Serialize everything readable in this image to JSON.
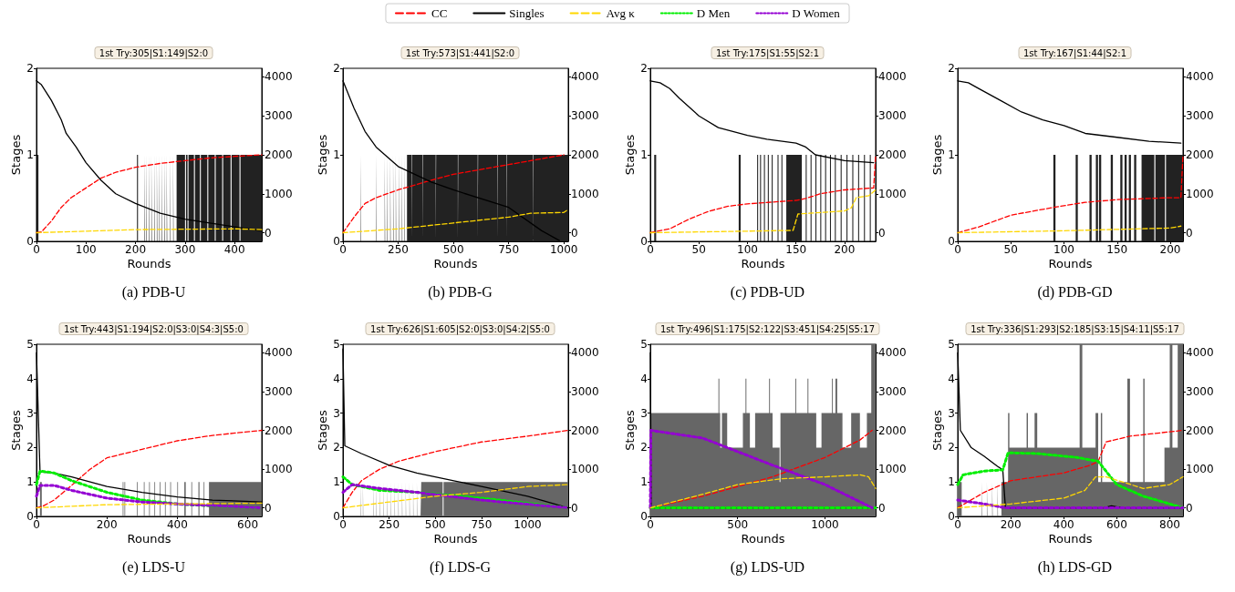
{
  "chart_data": [
    {
      "type": "line",
      "title": "1st Try:305|S1:149|S2:0",
      "annotations": [
        "(a) PDB-U"
      ],
      "xlabel": "Rounds",
      "ylabel": "Stages",
      "legend": "top",
      "xlim": [
        0,
        455
      ],
      "xticks": [
        0,
        100,
        200,
        300,
        400
      ],
      "ylim": [
        0,
        2
      ],
      "yticks": [
        0,
        1,
        2
      ],
      "y2lim": [
        -222,
        4222
      ],
      "y2ticks": [
        0,
        1000,
        2000,
        3000,
        4000
      ],
      "series": [
        {
          "type": "area",
          "axis": "y",
          "color": "#222222",
          "x": [
            0,
            2,
            4,
            203,
            205,
            218,
            219,
            222,
            223,
            227,
            228,
            232,
            233,
            238,
            239,
            243,
            244,
            248,
            249,
            253,
            254,
            258,
            259,
            263,
            264,
            270,
            271,
            276,
            277,
            283,
            300,
            302,
            305,
            307,
            318,
            320,
            330,
            332,
            345,
            347,
            360,
            362,
            375,
            377,
            392,
            394,
            410,
            412,
            455
          ],
          "values": [
            0,
            1,
            0,
            1,
            0,
            1,
            0,
            1,
            0,
            1,
            0,
            1,
            0,
            1,
            0,
            1,
            0,
            1,
            0,
            1,
            0,
            1,
            0,
            1,
            0,
            1,
            0,
            1,
            0,
            1,
            0,
            1,
            0,
            1,
            0,
            1,
            0,
            1,
            0,
            1,
            0,
            1,
            0,
            1,
            0,
            1,
            0,
            1,
            1
          ]
        },
        {
          "name": "CC",
          "color": "#ff0000",
          "line_style": "dashed",
          "axis": "y2",
          "x": [
            0,
            10,
            30,
            50,
            70,
            100,
            130,
            160,
            200,
            250,
            300,
            350,
            400,
            455
          ],
          "values": [
            0,
            20,
            300,
            650,
            900,
            1150,
            1400,
            1550,
            1680,
            1780,
            1850,
            1920,
            1960,
            2000
          ]
        },
        {
          "name": "Singles",
          "color": "#000000",
          "line_style": "solid",
          "axis": "y2",
          "x": [
            0,
            10,
            30,
            50,
            60,
            80,
            100,
            130,
            160,
            200,
            250,
            300,
            350,
            400,
            455
          ],
          "values": [
            3900,
            3800,
            3400,
            2900,
            2550,
            2200,
            1800,
            1350,
            1000,
            750,
            500,
            350,
            250,
            150,
            50
          ]
        },
        {
          "name": "Avg κ",
          "color": "#ffd700",
          "line_style": "dashed",
          "axis": "y2",
          "x": [
            0,
            200,
            400,
            455
          ],
          "values": [
            0,
            80,
            100,
            80
          ]
        }
      ]
    },
    {
      "type": "line",
      "title": "1st Try:573|S1:441|S2:0",
      "annotations": [
        "(b) PDB-G"
      ],
      "legend": "top",
      "xlabel": "Rounds",
      "ylabel": "Stages",
      "xlim": [
        0,
        1020
      ],
      "xticks": [
        0,
        250,
        500,
        750,
        1000
      ],
      "ylim": [
        0,
        2
      ],
      "yticks": [
        0,
        1,
        2
      ],
      "y2lim": [
        -222,
        4222
      ],
      "y2ticks": [
        0,
        1000,
        2000,
        3000,
        4000
      ],
      "series": [
        {
          "type": "area",
          "axis": "y",
          "color": "#222222",
          "x": [
            0,
            79,
            81,
            151,
            153,
            189,
            191,
            199,
            201,
            214,
            216,
            227,
            229,
            239,
            241,
            254,
            256,
            267,
            269,
            279,
            281,
            290,
            310,
            312,
            360,
            362,
            420,
            422,
            520,
            522,
            610,
            612,
            700,
            702,
            740,
            742,
            860,
            862,
            1020
          ],
          "values": [
            0,
            1,
            0,
            1,
            0,
            1,
            0,
            1,
            0,
            1,
            0,
            1,
            0,
            1,
            0,
            1,
            0,
            1,
            0,
            1,
            0,
            1,
            0,
            1,
            0,
            1,
            0,
            1,
            0,
            1,
            0,
            1,
            0,
            1,
            0,
            1,
            0,
            1,
            1
          ]
        },
        {
          "name": "CC",
          "color": "#ff0000",
          "line_style": "dashed",
          "axis": "y2",
          "x": [
            0,
            50,
            100,
            150,
            250,
            400,
            500,
            750,
            1000
          ],
          "values": [
            0,
            400,
            750,
            900,
            1100,
            1350,
            1500,
            1750,
            2000
          ]
        },
        {
          "name": "Singles",
          "color": "#000000",
          "line_style": "solid",
          "axis": "y2",
          "x": [
            0,
            50,
            100,
            150,
            250,
            400,
            500,
            750,
            900,
            980
          ],
          "values": [
            3900,
            3200,
            2600,
            2200,
            1700,
            1300,
            1100,
            650,
            50,
            -200
          ]
        },
        {
          "name": "Avg κ",
          "color": "#ffd700",
          "line_style": "dashed",
          "axis": "y2",
          "x": [
            0,
            250,
            500,
            750,
            850,
            1000,
            1020
          ],
          "values": [
            0,
            100,
            250,
            400,
            500,
            520,
            600
          ]
        }
      ]
    },
    {
      "type": "line",
      "title": "1st Try:175|S1:55|S2:1",
      "annotations": [
        "(c) PDB-UD"
      ],
      "legend": "top",
      "xlabel": "Rounds",
      "ylabel": "Stages",
      "xlim": [
        0,
        232
      ],
      "xticks": [
        0,
        50,
        100,
        150,
        200
      ],
      "ylim": [
        0,
        2
      ],
      "yticks": [
        0,
        1,
        2
      ],
      "y2lim": [
        -222,
        4222
      ],
      "y2ticks": [
        0,
        1000,
        2000,
        3000,
        4000
      ],
      "series": [
        {
          "type": "area",
          "axis": "y",
          "color": "#222222",
          "x": [
            0,
            4,
            6,
            91,
            93,
            110,
            111,
            113,
            114,
            117,
            118,
            121,
            122,
            125,
            126,
            131,
            132,
            135,
            136,
            140,
            156,
            160,
            161,
            165,
            166,
            170,
            171,
            175,
            176,
            180,
            181,
            185,
            186,
            190,
            191,
            196,
            197,
            202,
            203,
            208,
            209,
            214,
            215,
            220,
            221,
            226,
            227,
            232
          ],
          "values": [
            0,
            1,
            0,
            1,
            0,
            1,
            0,
            1,
            0,
            1,
            0,
            1,
            0,
            1,
            0,
            1,
            0,
            1,
            0,
            1,
            0,
            1,
            0,
            1,
            0,
            1,
            0,
            1,
            0,
            1,
            0,
            1,
            0,
            1,
            0,
            1,
            0,
            1,
            0,
            1,
            0,
            1,
            0,
            1,
            0,
            1,
            0,
            1
          ]
        },
        {
          "name": "CC",
          "color": "#ff0000",
          "line_style": "dashed",
          "axis": "y2",
          "x": [
            0,
            20,
            40,
            60,
            80,
            100,
            150,
            160,
            175,
            200,
            230,
            232
          ],
          "values": [
            0,
            100,
            350,
            550,
            680,
            740,
            830,
            880,
            1000,
            1100,
            1150,
            2000
          ]
        },
        {
          "name": "Singles",
          "color": "#000000",
          "line_style": "solid",
          "axis": "y2",
          "x": [
            0,
            10,
            20,
            30,
            50,
            70,
            100,
            120,
            150,
            160,
            170,
            200,
            230
          ],
          "values": [
            3900,
            3850,
            3700,
            3450,
            3000,
            2700,
            2500,
            2400,
            2300,
            2200,
            2000,
            1850,
            1800
          ]
        },
        {
          "name": "Avg κ",
          "color": "#ffd700",
          "line_style": "dashed",
          "axis": "y2",
          "x": [
            0,
            100,
            147,
            152,
            200,
            207,
            212,
            225,
            232
          ],
          "values": [
            0,
            40,
            60,
            480,
            560,
            640,
            900,
            950,
            1100
          ]
        }
      ]
    },
    {
      "type": "line",
      "title": "1st Try:167|S1:44|S2:1",
      "annotations": [
        "(d) PDB-GD"
      ],
      "legend": "top",
      "xlabel": "Rounds",
      "ylabel": "Stages",
      "xlim": [
        0,
        212
      ],
      "xticks": [
        0,
        50,
        100,
        150,
        200
      ],
      "ylim": [
        0,
        2
      ],
      "yticks": [
        0,
        1,
        2
      ],
      "y2lim": [
        -222,
        4222
      ],
      "y2ticks": [
        0,
        1000,
        2000,
        3000,
        4000
      ],
      "series": [
        {
          "type": "area",
          "axis": "y",
          "color": "#222222",
          "x": [
            0,
            90,
            92,
            111,
            113,
            124,
            126,
            130,
            132,
            133,
            135,
            144,
            146,
            153,
            155,
            157,
            159,
            161,
            163,
            166,
            168,
            173,
            185,
            186,
            195,
            196,
            212
          ],
          "values": [
            0,
            1,
            0,
            1,
            0,
            1,
            0,
            1,
            0,
            1,
            0,
            1,
            0,
            1,
            0,
            1,
            0,
            1,
            0,
            1,
            0,
            1,
            0,
            1,
            0,
            1,
            1
          ]
        },
        {
          "name": "CC",
          "color": "#ff0000",
          "line_style": "dashed",
          "axis": "y2",
          "x": [
            0,
            20,
            50,
            90,
            120,
            150,
            200,
            210,
            212
          ],
          "values": [
            0,
            150,
            450,
            650,
            780,
            850,
            900,
            900,
            2000
          ]
        },
        {
          "name": "Singles",
          "color": "#000000",
          "line_style": "solid",
          "axis": "y2",
          "x": [
            0,
            10,
            20,
            40,
            60,
            80,
            100,
            120,
            150,
            180,
            210
          ],
          "values": [
            3900,
            3850,
            3700,
            3400,
            3100,
            2900,
            2750,
            2550,
            2450,
            2350,
            2300
          ]
        },
        {
          "name": "Avg κ",
          "color": "#ffd700",
          "line_style": "dashed",
          "axis": "y2",
          "x": [
            0,
            100,
            200,
            210
          ],
          "values": [
            0,
            50,
            120,
            170
          ]
        }
      ]
    },
    {
      "type": "line",
      "title": "1st Try:443|S1:194|S2:0|S3:0|S4:3|S5:0",
      "annotations": [
        "(e) LDS-U"
      ],
      "legend": "top",
      "xlabel": "Rounds",
      "ylabel": "Stages",
      "xlim": [
        0,
        640
      ],
      "xticks": [
        0,
        200,
        400,
        600
      ],
      "ylim": [
        0,
        5
      ],
      "yticks": [
        0,
        1,
        2,
        3,
        4,
        5
      ],
      "y2lim": [
        -222,
        4222
      ],
      "y2ticks": [
        0,
        1000,
        2000,
        3000,
        4000
      ],
      "series": [
        {
          "type": "area",
          "axis": "y",
          "color": "#666666",
          "x": [
            0,
            10,
            15,
            245,
            247,
            250,
            252,
            285,
            287,
            305,
            307,
            320,
            322,
            335,
            337,
            350,
            352,
            365,
            367,
            380,
            382,
            400,
            402,
            420,
            424,
            440,
            442,
            460,
            463,
            475,
            477,
            490,
            640
          ],
          "values": [
            0,
            1,
            0,
            1,
            0,
            1,
            0,
            1,
            0,
            1,
            0,
            1,
            0,
            1,
            0,
            1,
            0,
            1,
            0,
            1,
            0,
            1,
            0,
            1,
            0,
            1,
            0,
            1,
            0,
            1,
            0,
            1,
            1
          ]
        },
        {
          "name": "CC",
          "color": "#ff0000",
          "line_style": "dashed",
          "axis": "y2",
          "x": [
            0,
            20,
            50,
            100,
            150,
            200,
            250,
            300,
            400,
            500,
            640
          ],
          "values": [
            0,
            50,
            200,
            580,
            980,
            1290,
            1400,
            1510,
            1730,
            1870,
            2000
          ]
        },
        {
          "name": "Singles",
          "color": "#000000",
          "line_style": "solid",
          "axis": "y2",
          "x": [
            0,
            10,
            50,
            100,
            200,
            300,
            400,
            500,
            640
          ],
          "values": [
            4000,
            930,
            900,
            800,
            550,
            400,
            280,
            200,
            150
          ]
        },
        {
          "name": "D Men",
          "color": "#00ee00",
          "line_style": "dotted",
          "axis": "y2",
          "x": [
            0,
            10,
            50,
            100,
            200,
            300,
            400,
            500,
            640
          ],
          "values": [
            600,
            950,
            900,
            700,
            400,
            200,
            100,
            50,
            0
          ]
        },
        {
          "name": "D Women",
          "color": "#9400d3",
          "line_style": "dotted",
          "axis": "y2",
          "x": [
            0,
            10,
            50,
            100,
            200,
            300,
            400,
            640
          ],
          "values": [
            300,
            580,
            580,
            450,
            250,
            150,
            100,
            0
          ]
        },
        {
          "name": "Avg κ",
          "color": "#ffd700",
          "line_style": "dashed",
          "axis": "y2",
          "x": [
            0,
            200,
            400,
            640
          ],
          "values": [
            0,
            80,
            100,
            120
          ]
        }
      ]
    },
    {
      "type": "line",
      "title": "1st Try:626|S1:605|S2:0|S3:0|S4:2|S5:0",
      "annotations": [
        "(f) LDS-G"
      ],
      "legend": "top",
      "xlabel": "Rounds",
      "ylabel": "Stages",
      "xlim": [
        0,
        1220
      ],
      "xticks": [
        0,
        250,
        500,
        750,
        1000
      ],
      "ylim": [
        0,
        5
      ],
      "yticks": [
        0,
        1,
        2,
        3,
        4,
        5
      ],
      "y2lim": [
        -222,
        4222
      ],
      "y2ticks": [
        0,
        1000,
        2000,
        3000,
        4000
      ],
      "series": [
        {
          "type": "area",
          "axis": "y",
          "color": "#666666",
          "x": [
            0,
            95,
            97,
            108,
            110,
            165,
            167,
            180,
            182,
            200,
            202,
            220,
            222,
            240,
            242,
            260,
            262,
            280,
            282,
            300,
            302,
            320,
            322,
            340,
            342,
            360,
            362,
            380,
            382,
            400,
            402,
            420,
            422,
            424,
            540,
            545,
            1220
          ],
          "values": [
            0,
            1,
            0,
            1,
            0,
            1,
            0,
            1,
            0,
            1,
            0,
            1,
            0,
            1,
            0,
            1,
            0,
            1,
            0,
            1,
            0,
            1,
            0,
            1,
            0,
            1,
            0,
            1,
            0,
            1,
            0,
            1,
            0,
            1,
            0,
            1,
            1
          ]
        },
        {
          "name": "CC",
          "color": "#ff0000",
          "line_style": "dashed",
          "axis": "y2",
          "x": [
            0,
            50,
            100,
            200,
            300,
            500,
            750,
            1000,
            1220
          ],
          "values": [
            0,
            400,
            700,
            1000,
            1200,
            1450,
            1700,
            1850,
            2000
          ]
        },
        {
          "name": "Singles",
          "color": "#000000",
          "line_style": "solid",
          "axis": "y2",
          "x": [
            0,
            10,
            100,
            250,
            400,
            600,
            750,
            1000,
            1220
          ],
          "values": [
            4100,
            1600,
            1400,
            1100,
            900,
            700,
            550,
            300,
            0
          ]
        },
        {
          "name": "D Men",
          "color": "#00ee00",
          "line_style": "dotted",
          "axis": "y2",
          "x": [
            0,
            50,
            200,
            400,
            750,
            1220
          ],
          "values": [
            800,
            600,
            450,
            400,
            250,
            0
          ]
        },
        {
          "name": "D Women",
          "color": "#9400d3",
          "line_style": "dotted",
          "axis": "y2",
          "x": [
            0,
            50,
            200,
            400,
            750,
            1220
          ],
          "values": [
            400,
            600,
            500,
            400,
            200,
            0
          ]
        },
        {
          "name": "Avg κ",
          "color": "#ffd700",
          "line_style": "dashed",
          "axis": "y2",
          "x": [
            0,
            250,
            500,
            750,
            1000,
            1220
          ],
          "values": [
            0,
            150,
            300,
            400,
            550,
            600
          ]
        }
      ]
    },
    {
      "type": "line",
      "title": "1st Try:496|S1:175|S2:122|S3:451|S4:25|S5:17",
      "annotations": [
        "(g) LDS-UD"
      ],
      "legend": "top",
      "xlabel": "Rounds",
      "ylabel": "Stages",
      "xlim": [
        0,
        1290
      ],
      "xticks": [
        0,
        500,
        1000
      ],
      "ylim": [
        0,
        5
      ],
      "yticks": [
        0,
        1,
        2,
        3,
        4,
        5
      ],
      "y2lim": [
        -222,
        4222
      ],
      "y2ticks": [
        0,
        1000,
        2000,
        3000,
        4000
      ],
      "series": [
        {
          "type": "area",
          "axis": "y",
          "color": "#666666",
          "x": [
            0,
            390,
            395,
            400,
            410,
            440,
            530,
            545,
            550,
            570,
            600,
            680,
            685,
            700,
            740,
            745,
            830,
            835,
            900,
            905,
            950,
            980,
            1040,
            1045,
            1060,
            1070,
            1100,
            1150,
            1200,
            1240,
            1265,
            1290
          ],
          "values": [
            3,
            4,
            3,
            2,
            3,
            2,
            3,
            4,
            3,
            2,
            3,
            4,
            3,
            2,
            1,
            3,
            4,
            3,
            4,
            3,
            2,
            3,
            4,
            3,
            4,
            3,
            2,
            3,
            2,
            3,
            5,
            5
          ]
        },
        {
          "name": "CC",
          "color": "#ff0000",
          "line_style": "dashed",
          "axis": "y2",
          "x": [
            0,
            300,
            700,
            1000,
            1200,
            1270
          ],
          "values": [
            0,
            300,
            800,
            1300,
            1750,
            2000
          ]
        },
        {
          "name": "Singles",
          "color": "#000000",
          "line_style": "solid",
          "axis": "y2",
          "x": [
            0,
            5,
            1290
          ],
          "values": [
            4000,
            0,
            0
          ]
        },
        {
          "name": "D Men",
          "color": "#00ee00",
          "line_style": "dotted",
          "axis": "y2",
          "x": [
            0,
            1290
          ],
          "values": [
            0,
            0
          ]
        },
        {
          "name": "D Women",
          "color": "#9400d3",
          "line_style": "dotted",
          "axis": "y2",
          "x": [
            0,
            3,
            300,
            700,
            1000,
            1270
          ],
          "values": [
            0,
            2000,
            1800,
            1100,
            600,
            0
          ]
        },
        {
          "name": "Avg κ",
          "color": "#ffd700",
          "line_style": "dashed",
          "axis": "y2",
          "x": [
            0,
            300,
            500,
            750,
            1000,
            1200,
            1250,
            1290
          ],
          "values": [
            0,
            350,
            600,
            750,
            800,
            850,
            800,
            500
          ]
        }
      ]
    },
    {
      "type": "line",
      "title": "1st Try:336|S1:293|S2:185|S3:15|S4:11|S5:17",
      "annotations": [
        "(h) LDS-GD"
      ],
      "legend": "top",
      "xlabel": "Rounds",
      "ylabel": "Stages",
      "xlim": [
        0,
        850
      ],
      "xticks": [
        0,
        200,
        400,
        600,
        800
      ],
      "ylim": [
        0,
        5
      ],
      "yticks": [
        0,
        1,
        2,
        3,
        4,
        5
      ],
      "y2lim": [
        -222,
        4222
      ],
      "y2ticks": [
        0,
        1000,
        2000,
        3000,
        4000
      ],
      "series": [
        {
          "type": "area",
          "axis": "y",
          "color": "#666666",
          "x": [
            0,
            15,
            90,
            92,
            110,
            112,
            130,
            132,
            150,
            152,
            165,
            190,
            195,
            260,
            265,
            290,
            300,
            460,
            470,
            520,
            530,
            540,
            545,
            640,
            650,
            700,
            705,
            780,
            800,
            810,
            830,
            850
          ],
          "values": [
            1,
            0,
            1,
            0,
            1,
            0,
            1,
            0,
            1,
            0,
            1,
            3,
            2,
            3,
            2,
            3,
            2,
            5,
            2,
            3,
            1,
            3,
            1,
            4,
            1,
            4,
            1,
            2,
            5,
            2,
            5,
            5
          ]
        },
        {
          "name": "CC",
          "color": "#ff0000",
          "line_style": "dashed",
          "axis": "y2",
          "x": [
            0,
            100,
            200,
            400,
            500,
            530,
            560,
            650,
            850
          ],
          "values": [
            0,
            400,
            700,
            900,
            1100,
            1200,
            1700,
            1850,
            2000
          ]
        },
        {
          "name": "Singles",
          "color": "#000000",
          "line_style": "solid",
          "axis": "y2",
          "x": [
            0,
            10,
            50,
            100,
            150,
            170,
            180,
            550,
            580,
            620,
            850
          ],
          "values": [
            4000,
            2000,
            1560,
            1330,
            1070,
            980,
            0,
            0,
            50,
            0,
            0
          ]
        },
        {
          "name": "D Men",
          "color": "#00ee00",
          "line_style": "dotted",
          "axis": "y2",
          "x": [
            0,
            20,
            100,
            170,
            190,
            300,
            450,
            530,
            600,
            700,
            850
          ],
          "values": [
            600,
            850,
            950,
            980,
            1420,
            1400,
            1300,
            1200,
            600,
            300,
            0
          ]
        },
        {
          "name": "D Women",
          "color": "#9400d3",
          "line_style": "dotted",
          "axis": "y2",
          "x": [
            0,
            50,
            100,
            180,
            850
          ],
          "values": [
            200,
            150,
            100,
            0,
            0
          ]
        },
        {
          "name": "Avg κ",
          "color": "#ffd700",
          "line_style": "dashed",
          "axis": "y2",
          "x": [
            0,
            200,
            400,
            480,
            520,
            560,
            700,
            800,
            850
          ],
          "values": [
            0,
            100,
            250,
            450,
            800,
            800,
            500,
            600,
            800
          ]
        }
      ]
    }
  ]
}
